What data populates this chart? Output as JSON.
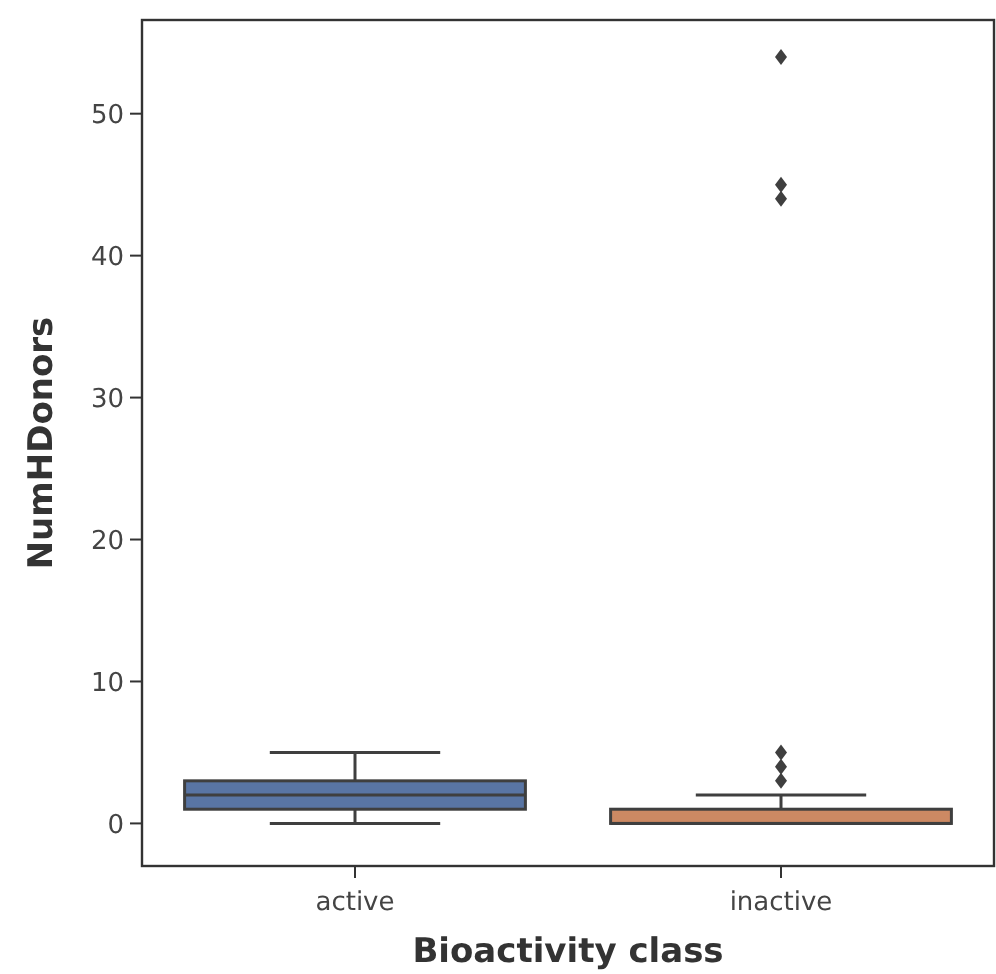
{
  "chart_data": {
    "type": "box",
    "xlabel": "Bioactivity class",
    "ylabel": "NumHDonors",
    "categories": [
      "active",
      "inactive"
    ],
    "colors": [
      "#5975a4",
      "#cc8963"
    ],
    "boxes": [
      {
        "low": 0,
        "q1": 1,
        "median": 2,
        "q3": 3,
        "high": 5
      },
      {
        "low": 0,
        "q1": 0,
        "median": 0,
        "q3": 1,
        "high": 2,
        "outliers": [
          3,
          4,
          5,
          44,
          45,
          54
        ]
      }
    ],
    "ylim": [
      -3,
      56.6
    ],
    "yticks": [
      0,
      10,
      20,
      30,
      40,
      50
    ],
    "grid": false
  }
}
